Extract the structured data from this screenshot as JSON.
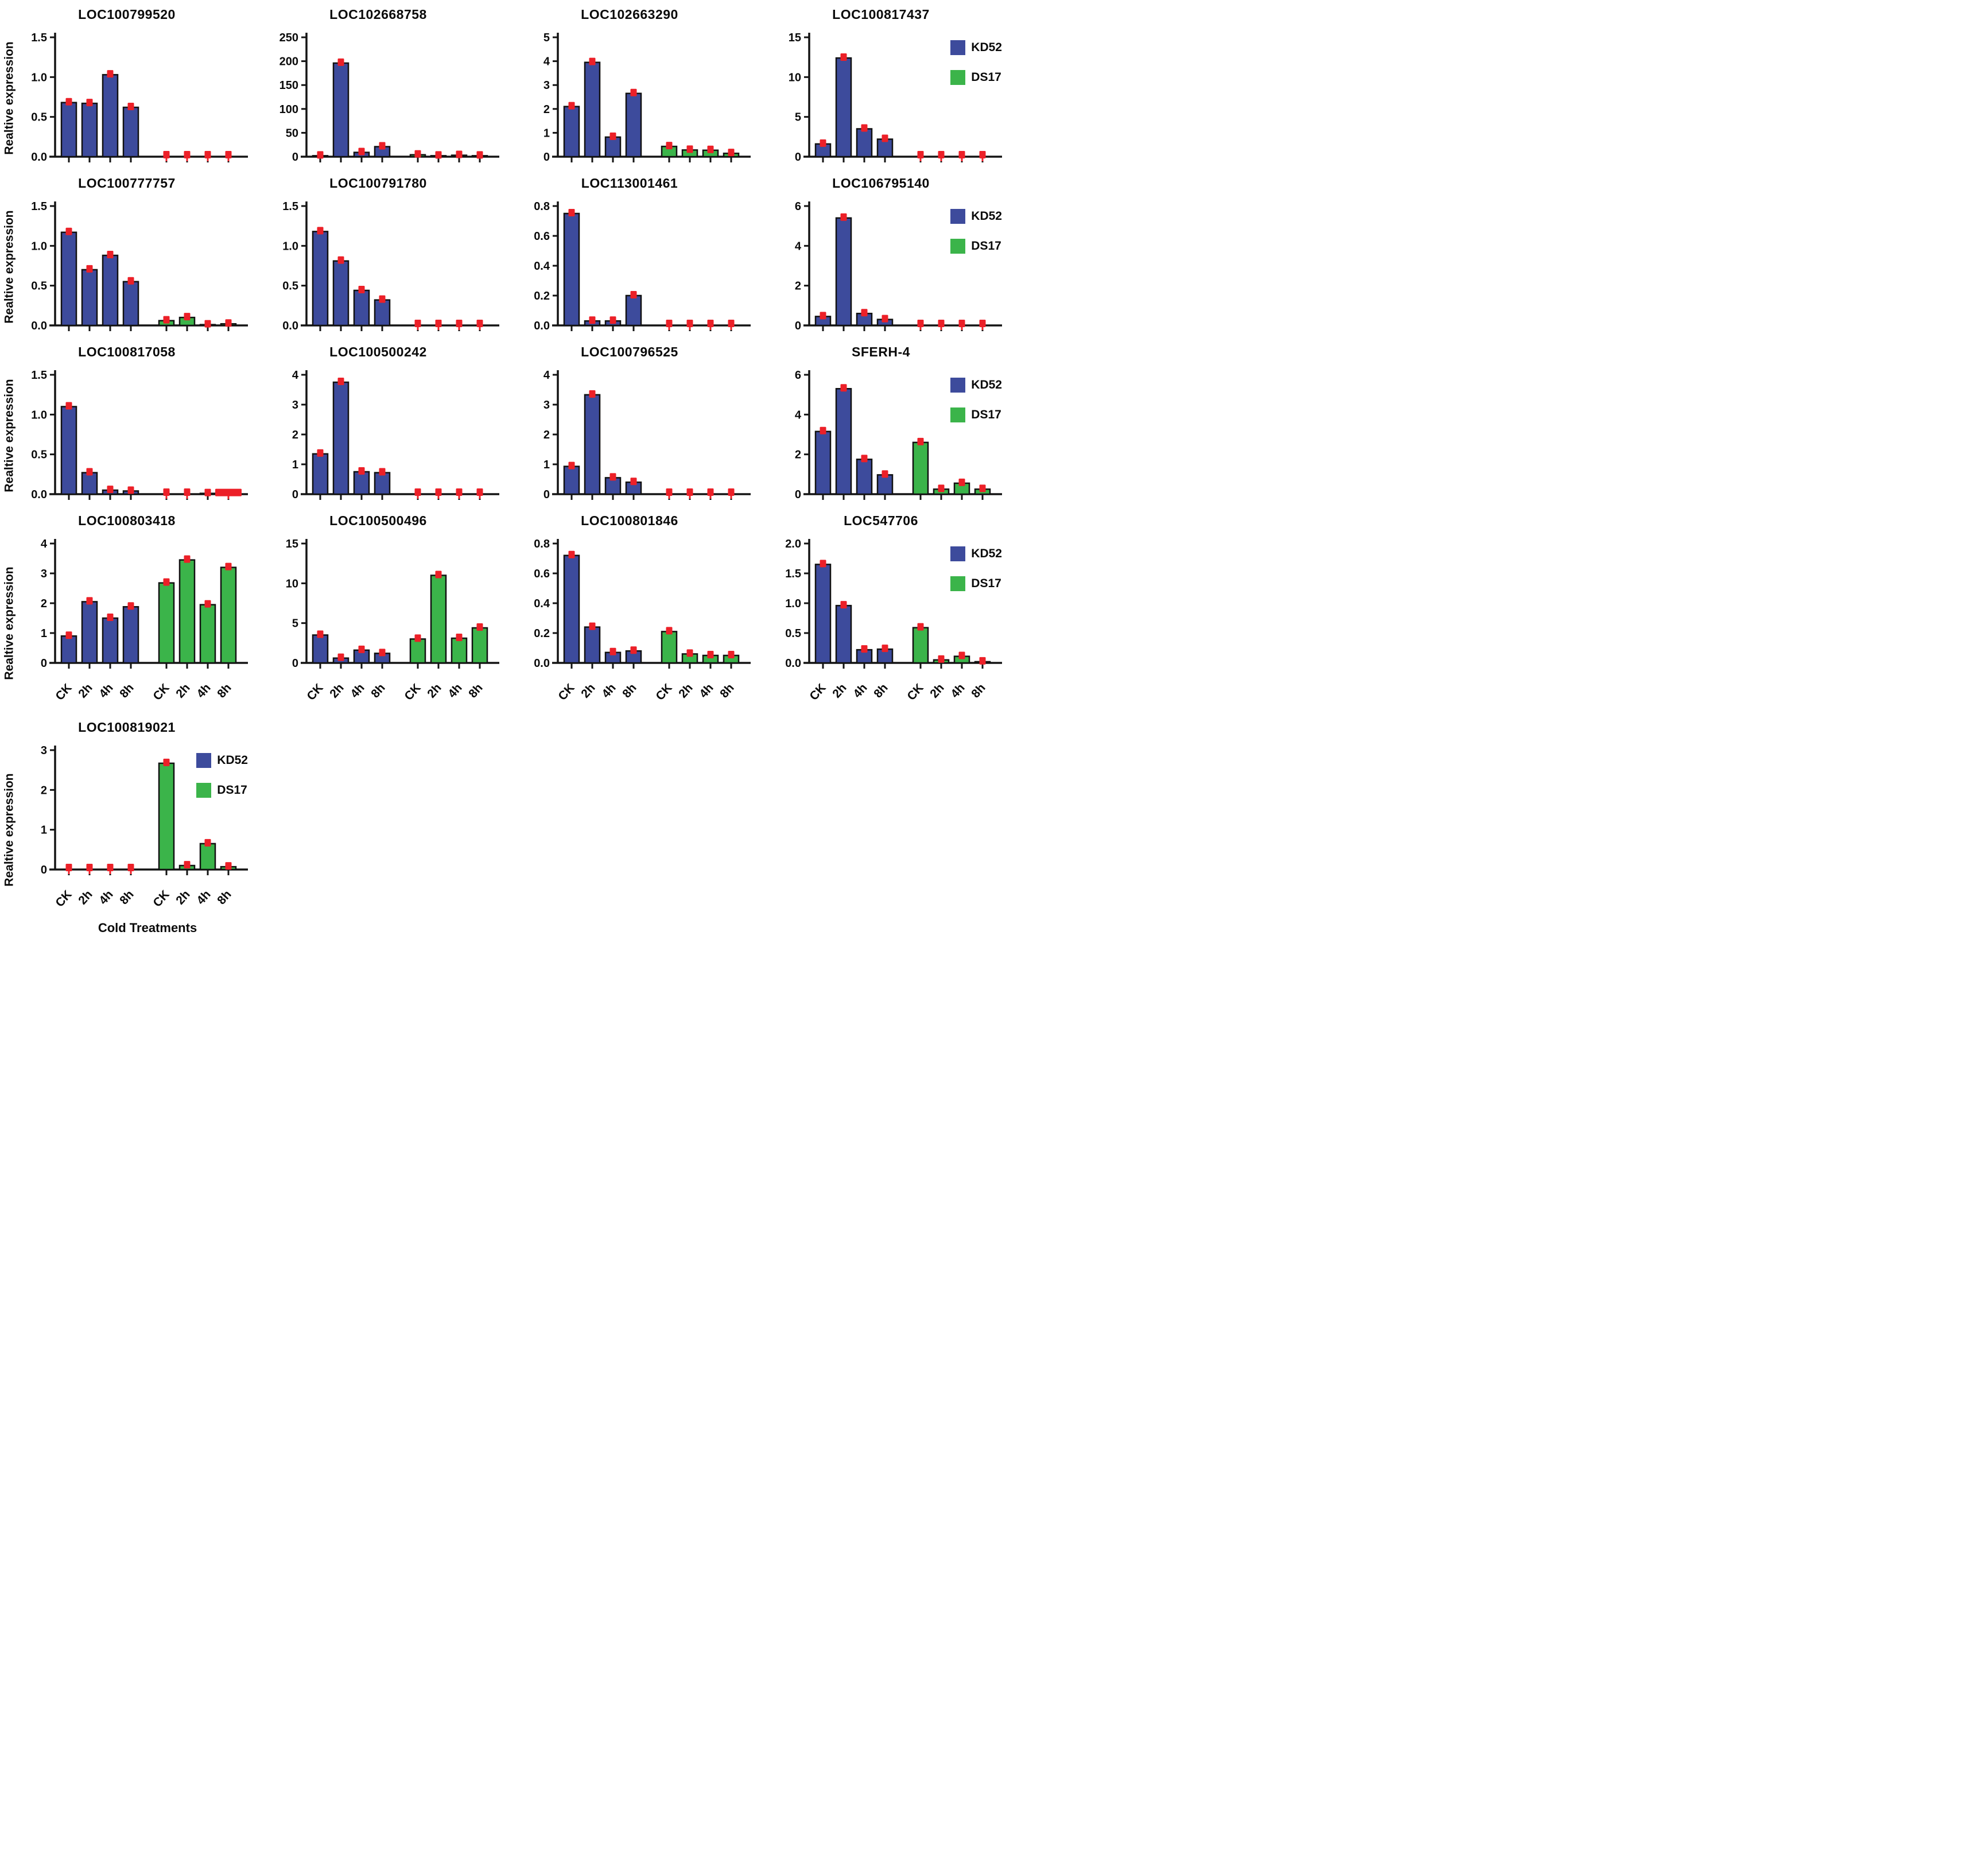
{
  "page": {
    "background": "#ffffff"
  },
  "axis": {
    "ylabel": "Realtive expression",
    "xlabel": "Cold Treatments",
    "categories": [
      "CK",
      "2h",
      "4h",
      "8h"
    ]
  },
  "legend": {
    "kd52": "KD52",
    "ds17": "DS17"
  },
  "colors": {
    "kd52": "#3d4b9c",
    "ds17": "#3bb44a",
    "error": "#ec2028",
    "axis": "#141414",
    "bar_stroke": "#111111"
  },
  "chart_data": [
    {
      "type": "bar",
      "title": "LOC100799520",
      "ymax": 1.5,
      "yticks": [
        "0.0",
        "0.5",
        "1.0",
        "1.5"
      ],
      "categories": [
        "CK",
        "2h",
        "4h",
        "8h"
      ],
      "series": [
        {
          "name": "KD52",
          "values": [
            0.68,
            0.67,
            1.03,
            0.62
          ]
        },
        {
          "name": "DS17",
          "values": [
            0,
            0,
            0,
            0
          ]
        }
      ],
      "show_xticklabels": false,
      "show_legend": false,
      "show_ylabel": true,
      "show_xlabel": false
    },
    {
      "type": "bar",
      "title": "LOC102668758",
      "ymax": 250,
      "yticks": [
        "0",
        "50",
        "100",
        "150",
        "200",
        "250"
      ],
      "categories": [
        "CK",
        "2h",
        "4h",
        "8h"
      ],
      "series": [
        {
          "name": "KD52",
          "values": [
            2,
            196,
            9,
            21
          ]
        },
        {
          "name": "DS17",
          "values": [
            4,
            2,
            3,
            2
          ]
        }
      ],
      "show_xticklabels": false,
      "show_legend": false,
      "show_ylabel": false,
      "show_xlabel": false
    },
    {
      "type": "bar",
      "title": "LOC102663290",
      "ymax": 5,
      "yticks": [
        "0",
        "1",
        "2",
        "3",
        "4",
        "5"
      ],
      "categories": [
        "CK",
        "2h",
        "4h",
        "8h"
      ],
      "series": [
        {
          "name": "KD52",
          "values": [
            2.1,
            3.95,
            0.82,
            2.65
          ]
        },
        {
          "name": "DS17",
          "values": [
            0.43,
            0.28,
            0.27,
            0.14
          ]
        }
      ],
      "show_xticklabels": false,
      "show_legend": false,
      "show_ylabel": false,
      "show_xlabel": false
    },
    {
      "type": "bar",
      "title": "LOC100817437",
      "ymax": 15,
      "yticks": [
        "0",
        "5",
        "10",
        "15"
      ],
      "categories": [
        "CK",
        "2h",
        "4h",
        "8h"
      ],
      "series": [
        {
          "name": "KD52",
          "values": [
            1.6,
            12.4,
            3.5,
            2.2
          ]
        },
        {
          "name": "DS17",
          "values": [
            0,
            0,
            0,
            0
          ]
        }
      ],
      "show_xticklabels": false,
      "show_legend": true,
      "show_ylabel": false,
      "show_xlabel": false
    },
    {
      "type": "bar",
      "title": "LOC100777757",
      "ymax": 1.5,
      "yticks": [
        "0.0",
        "0.5",
        "1.0",
        "1.5"
      ],
      "categories": [
        "CK",
        "2h",
        "4h",
        "8h"
      ],
      "series": [
        {
          "name": "KD52",
          "values": [
            1.17,
            0.7,
            0.88,
            0.55
          ]
        },
        {
          "name": "DS17",
          "values": [
            0.06,
            0.1,
            0.01,
            0.02
          ]
        }
      ],
      "show_xticklabels": false,
      "show_legend": false,
      "show_ylabel": true,
      "show_xlabel": false
    },
    {
      "type": "bar",
      "title": "LOC100791780",
      "ymax": 1.5,
      "yticks": [
        "0.0",
        "0.5",
        "1.0",
        "1.5"
      ],
      "categories": [
        "CK",
        "2h",
        "4h",
        "8h"
      ],
      "series": [
        {
          "name": "KD52",
          "values": [
            1.18,
            0.81,
            0.44,
            0.32
          ]
        },
        {
          "name": "DS17",
          "values": [
            0,
            0,
            0,
            0
          ]
        }
      ],
      "show_xticklabels": false,
      "show_legend": false,
      "show_ylabel": false,
      "show_xlabel": false
    },
    {
      "type": "bar",
      "title": "LOC113001461",
      "ymax": 0.8,
      "yticks": [
        "0.0",
        "0.2",
        "0.4",
        "0.6",
        "0.8"
      ],
      "categories": [
        "CK",
        "2h",
        "4h",
        "8h"
      ],
      "series": [
        {
          "name": "KD52",
          "values": [
            0.75,
            0.03,
            0.03,
            0.2
          ]
        },
        {
          "name": "DS17",
          "values": [
            0,
            0,
            0,
            0
          ]
        }
      ],
      "show_xticklabels": false,
      "show_legend": false,
      "show_ylabel": false,
      "show_xlabel": false
    },
    {
      "type": "bar",
      "title": "LOC106795140",
      "ymax": 6,
      "yticks": [
        "0",
        "2",
        "4",
        "6"
      ],
      "categories": [
        "CK",
        "2h",
        "4h",
        "8h"
      ],
      "series": [
        {
          "name": "KD52",
          "values": [
            0.45,
            5.4,
            0.6,
            0.3
          ]
        },
        {
          "name": "DS17",
          "values": [
            0,
            0,
            0,
            0
          ]
        }
      ],
      "show_xticklabels": false,
      "show_legend": true,
      "show_ylabel": false,
      "show_xlabel": false
    },
    {
      "type": "bar",
      "title": "LOC100817058",
      "ymax": 1.5,
      "yticks": [
        "0.0",
        "0.5",
        "1.0",
        "1.5"
      ],
      "categories": [
        "CK",
        "2h",
        "4h",
        "8h"
      ],
      "series": [
        {
          "name": "KD52",
          "values": [
            1.1,
            0.27,
            0.05,
            0.04
          ]
        },
        {
          "name": "DS17",
          "values": [
            0,
            0,
            0.01,
            0.01
          ]
        }
      ],
      "wide_marker": {
        "series": 1,
        "index": 3
      },
      "show_xticklabels": false,
      "show_legend": false,
      "show_ylabel": true,
      "show_xlabel": false
    },
    {
      "type": "bar",
      "title": "LOC100500242",
      "ymax": 4,
      "yticks": [
        "0",
        "1",
        "2",
        "3",
        "4"
      ],
      "categories": [
        "CK",
        "2h",
        "4h",
        "8h"
      ],
      "series": [
        {
          "name": "KD52",
          "values": [
            1.35,
            3.75,
            0.75,
            0.72
          ]
        },
        {
          "name": "DS17",
          "values": [
            0,
            0,
            0,
            0
          ]
        }
      ],
      "show_xticklabels": false,
      "show_legend": false,
      "show_ylabel": false,
      "show_xlabel": false
    },
    {
      "type": "bar",
      "title": "LOC100796525",
      "ymax": 4,
      "yticks": [
        "0",
        "1",
        "2",
        "3",
        "4"
      ],
      "categories": [
        "CK",
        "2h",
        "4h",
        "8h"
      ],
      "series": [
        {
          "name": "KD52",
          "values": [
            0.93,
            3.33,
            0.55,
            0.4
          ]
        },
        {
          "name": "DS17",
          "values": [
            0,
            0,
            0,
            0
          ]
        }
      ],
      "show_xticklabels": false,
      "show_legend": false,
      "show_ylabel": false,
      "show_xlabel": false
    },
    {
      "type": "bar",
      "title": "SFERH-4",
      "ymax": 6,
      "yticks": [
        "0",
        "2",
        "4",
        "6"
      ],
      "categories": [
        "CK",
        "2h",
        "4h",
        "8h"
      ],
      "series": [
        {
          "name": "KD52",
          "values": [
            3.15,
            5.3,
            1.75,
            0.97
          ]
        },
        {
          "name": "DS17",
          "values": [
            2.6,
            0.25,
            0.55,
            0.25
          ]
        }
      ],
      "show_xticklabels": false,
      "show_legend": true,
      "show_ylabel": false,
      "show_xlabel": false
    },
    {
      "type": "bar",
      "title": "LOC100803418",
      "ymax": 4,
      "yticks": [
        "0",
        "1",
        "2",
        "3",
        "4"
      ],
      "categories": [
        "CK",
        "2h",
        "4h",
        "8h"
      ],
      "series": [
        {
          "name": "KD52",
          "values": [
            0.9,
            2.05,
            1.5,
            1.88
          ]
        },
        {
          "name": "DS17",
          "values": [
            2.68,
            3.45,
            1.95,
            3.2
          ]
        }
      ],
      "show_xticklabels": true,
      "show_legend": false,
      "show_ylabel": true,
      "show_xlabel": false
    },
    {
      "type": "bar",
      "title": "LOC100500496",
      "ymax": 15,
      "yticks": [
        "0",
        "5",
        "10",
        "15"
      ],
      "categories": [
        "CK",
        "2h",
        "4h",
        "8h"
      ],
      "series": [
        {
          "name": "KD52",
          "values": [
            3.5,
            0.6,
            1.6,
            1.2
          ]
        },
        {
          "name": "DS17",
          "values": [
            3.0,
            11.0,
            3.1,
            4.4
          ]
        }
      ],
      "show_xticklabels": true,
      "show_legend": false,
      "show_ylabel": false,
      "show_xlabel": false
    },
    {
      "type": "bar",
      "title": "LOC100801846",
      "ymax": 0.8,
      "yticks": [
        "0.0",
        "0.2",
        "0.4",
        "0.6",
        "0.8"
      ],
      "categories": [
        "CK",
        "2h",
        "4h",
        "8h"
      ],
      "series": [
        {
          "name": "KD52",
          "values": [
            0.72,
            0.24,
            0.07,
            0.08
          ]
        },
        {
          "name": "DS17",
          "values": [
            0.21,
            0.06,
            0.05,
            0.05
          ]
        }
      ],
      "show_xticklabels": true,
      "show_legend": false,
      "show_ylabel": false,
      "show_xlabel": false
    },
    {
      "type": "bar",
      "title": "LOC547706",
      "ymax": 2.0,
      "yticks": [
        "0.0",
        "0.5",
        "1.0",
        "1.5",
        "2.0"
      ],
      "categories": [
        "CK",
        "2h",
        "4h",
        "8h"
      ],
      "series": [
        {
          "name": "KD52",
          "values": [
            1.65,
            0.96,
            0.22,
            0.23
          ]
        },
        {
          "name": "DS17",
          "values": [
            0.59,
            0.05,
            0.11,
            0.02
          ]
        }
      ],
      "show_xticklabels": true,
      "show_legend": true,
      "show_ylabel": false,
      "show_xlabel": false
    },
    {
      "type": "bar",
      "title": "LOC100819021",
      "ymax": 3,
      "yticks": [
        "0",
        "1",
        "2",
        "3"
      ],
      "categories": [
        "CK",
        "2h",
        "4h",
        "8h"
      ],
      "series": [
        {
          "name": "KD52",
          "values": [
            0,
            0,
            0,
            0
          ]
        },
        {
          "name": "DS17",
          "values": [
            2.67,
            0.1,
            0.65,
            0.07
          ]
        }
      ],
      "show_xticklabels": true,
      "show_legend": true,
      "show_ylabel": true,
      "show_xlabel": true
    }
  ]
}
